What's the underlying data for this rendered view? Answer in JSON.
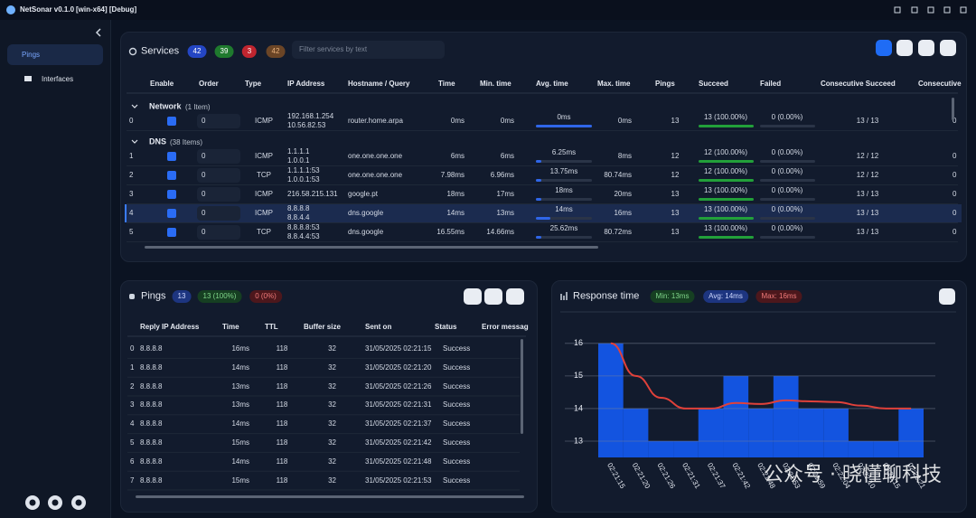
{
  "app": {
    "title": "NetSonar v0.1.0",
    "build": "[win-x64] [Debug]"
  },
  "sidebar": {
    "items": [
      "Pings",
      "Interfaces"
    ]
  },
  "services": {
    "title": "Services",
    "badges": [
      "42",
      "39",
      "3",
      "42"
    ],
    "filter_placeholder": "Filter services by text",
    "columns": [
      "Enable",
      "Order",
      "Type",
      "IP Address",
      "Hostname / Query",
      "Time",
      "Min. time",
      "Avg. time",
      "Max. time",
      "Pings",
      "Succeed",
      "Failed",
      "Consecutive Succeed",
      "Consecutive"
    ],
    "groups": [
      {
        "name": "Network",
        "count": "(1 Item)",
        "rows": [
          {
            "index": "0",
            "enabled": true,
            "order": "0",
            "type": "ICMP",
            "ip": [
              "192.168.1.254",
              "10.56.82.53"
            ],
            "host": "router.home.arpa",
            "time": "0ms",
            "min": "0ms",
            "avg": "0ms",
            "max": "0ms",
            "pings": "13",
            "succeed": "13 (100.00%)",
            "failed": "0 (0.00%)",
            "consecutive_succeed": "13 / 13",
            "consecutive": "0"
          }
        ]
      },
      {
        "name": "DNS",
        "count": "(38 Items)",
        "rows": [
          {
            "index": "1",
            "enabled": true,
            "order": "0",
            "type": "ICMP",
            "ip": [
              "1.1.1.1",
              "1.0.0.1"
            ],
            "host": "one.one.one.one",
            "time": "6ms",
            "min": "6ms",
            "avg": "6.25ms",
            "max": "8ms",
            "pings": "12",
            "succeed": "12 (100.00%)",
            "failed": "0 (0.00%)",
            "consecutive_succeed": "12 / 12",
            "consecutive": "0"
          },
          {
            "index": "2",
            "enabled": true,
            "order": "0",
            "type": "TCP",
            "ip": [
              "1.1.1.1:53",
              "1.0.0.1:53"
            ],
            "host": "one.one.one.one",
            "time": "7.98ms",
            "min": "6.96ms",
            "avg": "13.75ms",
            "max": "80.74ms",
            "pings": "12",
            "succeed": "12 (100.00%)",
            "failed": "0 (0.00%)",
            "consecutive_succeed": "12 / 12",
            "consecutive": "0"
          },
          {
            "index": "3",
            "enabled": true,
            "order": "0",
            "type": "ICMP",
            "ip": [
              "216.58.215.131"
            ],
            "host": "google.pt",
            "time": "18ms",
            "min": "17ms",
            "avg": "18ms",
            "max": "20ms",
            "pings": "13",
            "succeed": "13 (100.00%)",
            "failed": "0 (0.00%)",
            "consecutive_succeed": "13 / 13",
            "consecutive": "0"
          },
          {
            "index": "4",
            "enabled": true,
            "selected": true,
            "order": "0",
            "type": "ICMP",
            "ip": [
              "8.8.8.8",
              "8.8.4.4"
            ],
            "host": "dns.google",
            "time": "14ms",
            "min": "13ms",
            "avg": "14ms",
            "max": "16ms",
            "pings": "13",
            "succeed": "13 (100.00%)",
            "failed": "0 (0.00%)",
            "consecutive_succeed": "13 / 13",
            "consecutive": "0"
          },
          {
            "index": "5",
            "enabled": true,
            "order": "0",
            "type": "TCP",
            "ip": [
              "8.8.8.8:53",
              "8.8.4.4:53"
            ],
            "host": "dns.google",
            "time": "16.55ms",
            "min": "14.66ms",
            "avg": "25.62ms",
            "max": "80.72ms",
            "pings": "13",
            "succeed": "13 (100.00%)",
            "failed": "0 (0.00%)",
            "consecutive_succeed": "13 / 13",
            "consecutive": "0"
          }
        ]
      }
    ]
  },
  "pings": {
    "title": "Pings",
    "badges": [
      "13",
      "13 (100%)",
      "0 (0%)"
    ],
    "columns": [
      "Reply IP Address",
      "Time",
      "TTL",
      "Buffer size",
      "Sent on",
      "Status",
      "Error messag"
    ],
    "rows": [
      {
        "index": "0",
        "ip": "8.8.8.8",
        "time": "16ms",
        "ttl": "118",
        "buffer": "32",
        "sent": "31/05/2025 02:21:15",
        "status": "Success"
      },
      {
        "index": "1",
        "ip": "8.8.8.8",
        "time": "14ms",
        "ttl": "118",
        "buffer": "32",
        "sent": "31/05/2025 02:21:20",
        "status": "Success"
      },
      {
        "index": "2",
        "ip": "8.8.8.8",
        "time": "13ms",
        "ttl": "118",
        "buffer": "32",
        "sent": "31/05/2025 02:21:26",
        "status": "Success"
      },
      {
        "index": "3",
        "ip": "8.8.8.8",
        "time": "13ms",
        "ttl": "118",
        "buffer": "32",
        "sent": "31/05/2025 02:21:31",
        "status": "Success"
      },
      {
        "index": "4",
        "ip": "8.8.8.8",
        "time": "14ms",
        "ttl": "118",
        "buffer": "32",
        "sent": "31/05/2025 02:21:37",
        "status": "Success"
      },
      {
        "index": "5",
        "ip": "8.8.8.8",
        "time": "15ms",
        "ttl": "118",
        "buffer": "32",
        "sent": "31/05/2025 02:21:42",
        "status": "Success"
      },
      {
        "index": "6",
        "ip": "8.8.8.8",
        "time": "14ms",
        "ttl": "118",
        "buffer": "32",
        "sent": "31/05/2025 02:21:48",
        "status": "Success"
      },
      {
        "index": "7",
        "ip": "8.8.8.8",
        "time": "15ms",
        "ttl": "118",
        "buffer": "32",
        "sent": "31/05/2025 02:21:53",
        "status": "Success"
      }
    ]
  },
  "response": {
    "badges": [
      "Min: 13ms",
      "Avg: 14ms",
      "Max: 16ms"
    ]
  },
  "chart_data": {
    "type": "bar",
    "title": "Response time",
    "x": [
      "02:21:15",
      "02:21:20",
      "02:21:26",
      "02:21:31",
      "02:21:37",
      "02:21:42",
      "02:21:48",
      "02:21:53",
      "02:21:59",
      "02:22:04",
      "02:22:10",
      "02:22:15",
      "02:22:21"
    ],
    "values": [
      16,
      14,
      13,
      13,
      14,
      15,
      14,
      15,
      14,
      14,
      13,
      13,
      14
    ],
    "color": "#1459f0",
    "line_values": [
      16,
      15,
      14.33,
      14,
      14,
      14.17,
      14.14,
      14.25,
      14.22,
      14.2,
      14.09,
      14,
      14
    ],
    "line_color": "#e0413a",
    "ylim": [
      12.5,
      16.05
    ],
    "yticks": [
      13,
      14,
      15,
      16
    ],
    "grid": true
  },
  "watermark": "公众号 · 晓懂聊科技"
}
